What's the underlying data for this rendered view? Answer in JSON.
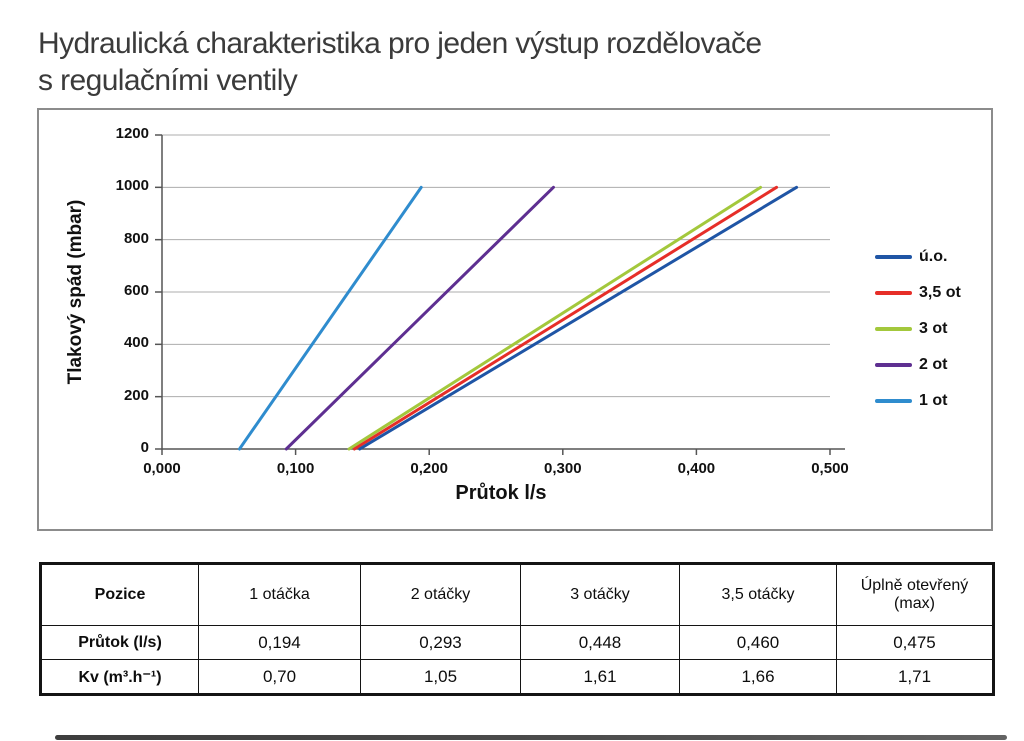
{
  "page": {
    "title": "Hydraulická charakteristika pro jeden výstup rozdělovače\ns regulačními ventily"
  },
  "chart_data": {
    "type": "line",
    "title": "Hydraulická charakteristika pro jeden výstup rozdělovače s regulačními ventily",
    "xlabel": "Průtok l/s",
    "ylabel": "Tlakový spád (mbar)",
    "xlim": [
      0,
      0.5
    ],
    "ylim": [
      0,
      1200
    ],
    "grid": "horizontal",
    "legend_position": "right",
    "x_ticks": {
      "values": [
        0,
        0.1,
        0.2,
        0.3,
        0.4,
        0.5
      ],
      "labels": [
        "0,000",
        "0,100",
        "0,200",
        "0,300",
        "0,400",
        "0,500"
      ]
    },
    "y_ticks": {
      "values": [
        0,
        200,
        400,
        600,
        800,
        1000,
        1200
      ],
      "labels": [
        "0",
        "200",
        "400",
        "600",
        "800",
        "1000",
        "1200"
      ]
    },
    "series": [
      {
        "name": "ú.o.",
        "color": "#1f55a5",
        "points": [
          [
            0.148,
            0
          ],
          [
            0.475,
            1000
          ]
        ]
      },
      {
        "name": "3,5 ot",
        "color": "#e62e28",
        "points": [
          [
            0.144,
            0
          ],
          [
            0.46,
            1000
          ]
        ]
      },
      {
        "name": "3 ot",
        "color": "#a3c83c",
        "points": [
          [
            0.14,
            0
          ],
          [
            0.448,
            1000
          ]
        ]
      },
      {
        "name": "2 ot",
        "color": "#5e2f91",
        "points": [
          [
            0.093,
            0
          ],
          [
            0.293,
            1000
          ]
        ]
      },
      {
        "name": "1 ot",
        "color": "#2f8cce",
        "points": [
          [
            0.058,
            0
          ],
          [
            0.194,
            1000
          ]
        ]
      }
    ]
  },
  "table": {
    "headers": [
      "Pozice",
      "1 otáčka",
      "2 otáčky",
      "3 otáčky",
      "3,5 otáčky",
      "Úplně otevřený\n(max)"
    ],
    "rows": [
      {
        "label": "Průtok (l/s)",
        "values": [
          "0,194",
          "0,293",
          "0,448",
          "0,460",
          "0,475"
        ]
      },
      {
        "label": "Kv (m³.h⁻¹)",
        "values": [
          "0,70",
          "1,05",
          "1,61",
          "1,66",
          "1,71"
        ]
      }
    ]
  }
}
